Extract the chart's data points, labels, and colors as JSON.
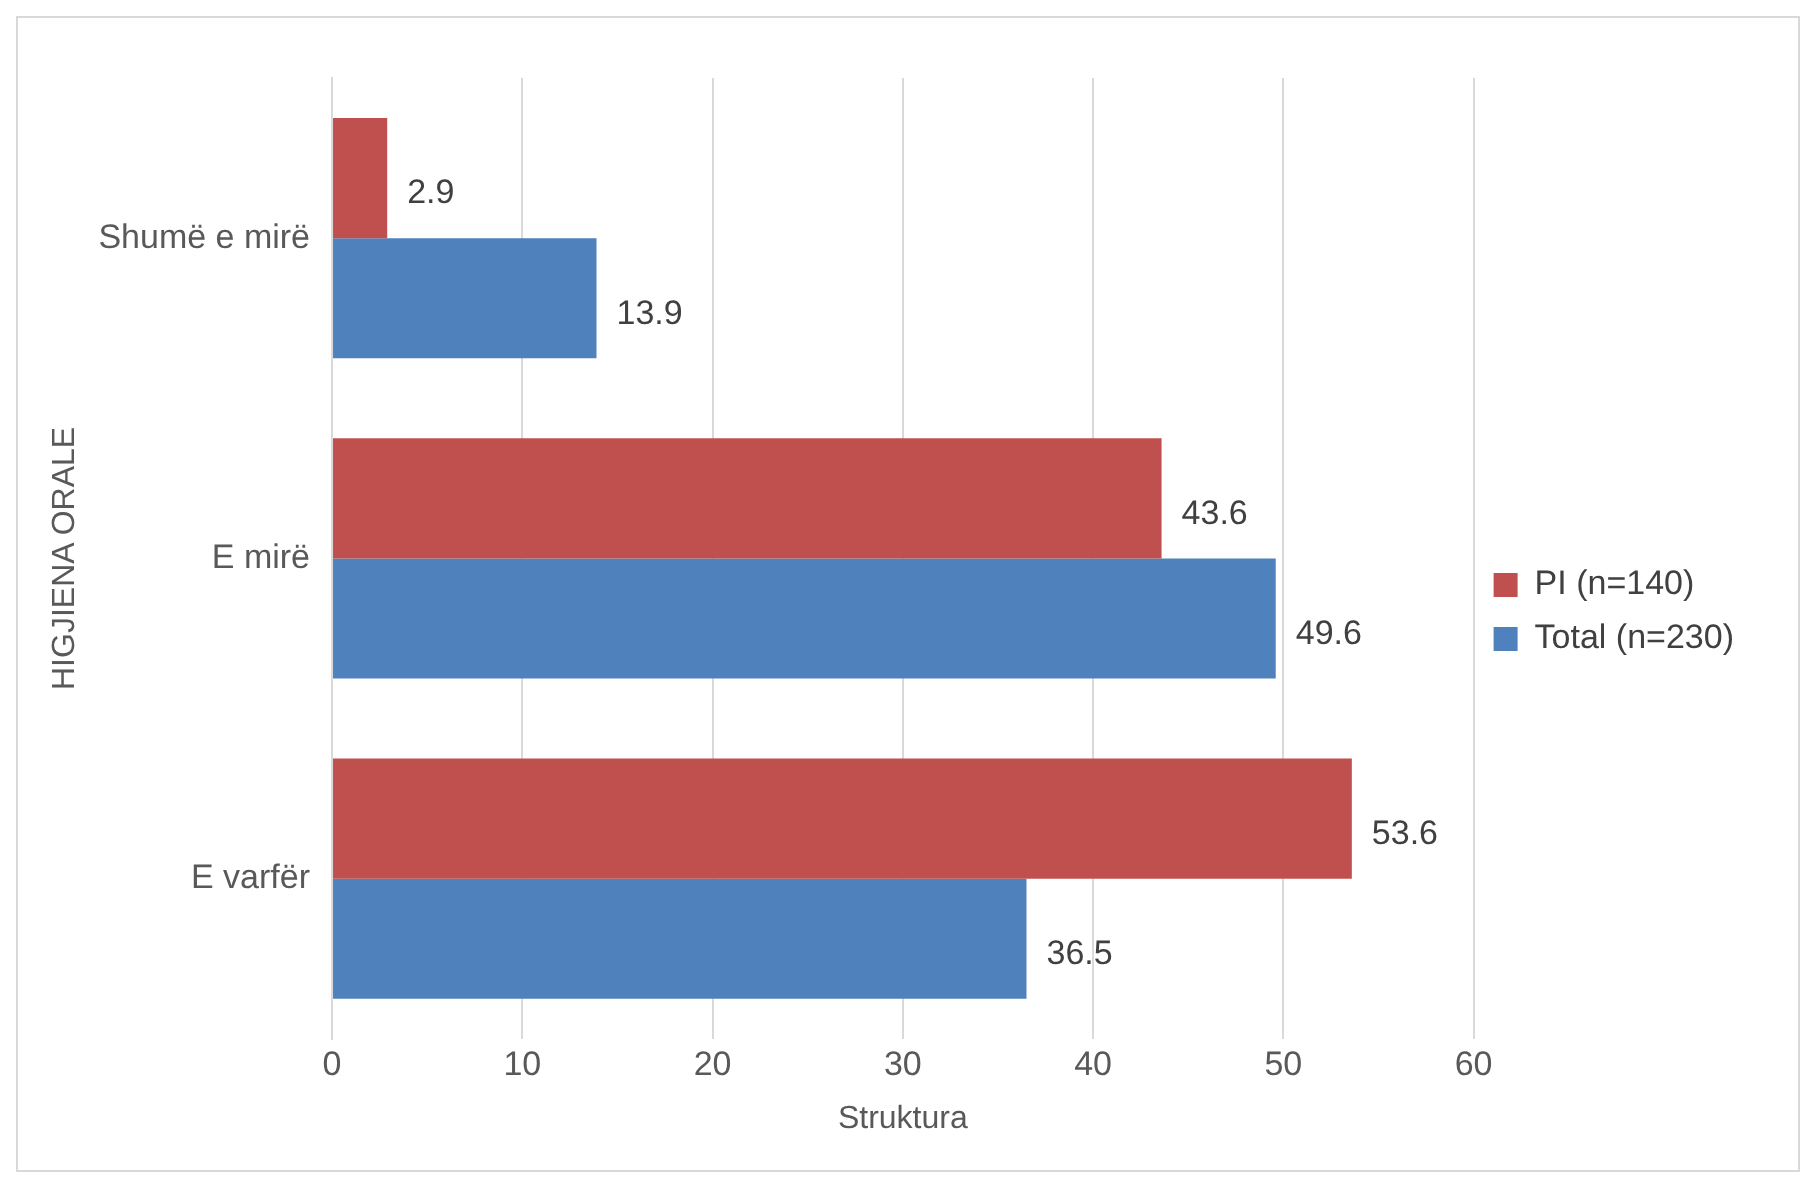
{
  "chart_data": {
    "type": "bar",
    "orientation": "horizontal",
    "xlabel": "Struktura",
    "ylabel": "HIGJIENA ORALE",
    "categories": [
      "Shumë e mirë",
      "E mirë",
      "E varfër"
    ],
    "series": [
      {
        "name": "PI (n=140)",
        "color": "#c0504d",
        "values": [
          2.9,
          43.6,
          53.6
        ]
      },
      {
        "name": "Total (n=230)",
        "color": "#4f81bd",
        "values": [
          13.9,
          49.6,
          36.5
        ]
      }
    ],
    "xlim": [
      0,
      60
    ],
    "xticks": [
      0,
      10,
      20,
      30,
      40,
      50,
      60
    ],
    "grid": "x",
    "legend": "right",
    "data_labels": true
  }
}
